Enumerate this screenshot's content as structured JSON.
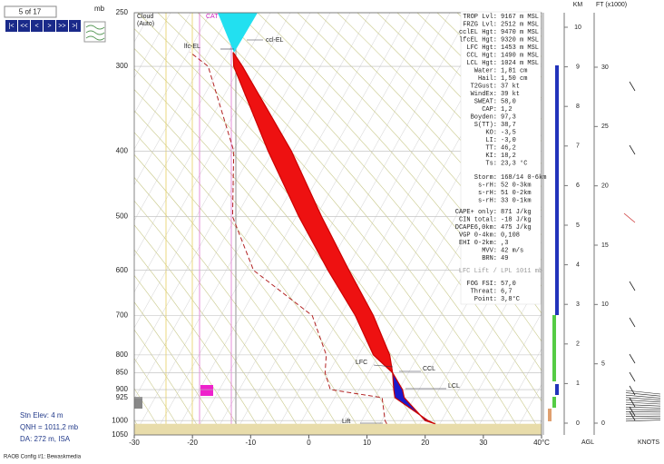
{
  "navigator": {
    "counter": "5 of 17",
    "buttons": [
      "|<",
      "<<",
      "<",
      ">",
      ">>",
      ">|"
    ]
  },
  "station": {
    "elevation": "Stn Elev: 4 m",
    "qnh": "QNH = 1011,2 mb",
    "da": "DA: 272 m, ISA"
  },
  "footer": "RAOB Config #1: Bewaskmedia",
  "chart_data": {
    "type": "skew-t",
    "y_label": "mb",
    "ylog": true,
    "grid": true,
    "levels": [
      1011,
      1000,
      925,
      900,
      850,
      800,
      700,
      600,
      500,
      400,
      300,
      286
    ],
    "ylim": [
      1050,
      250
    ],
    "yticks": [
      250,
      300,
      400,
      500,
      600,
      700,
      800,
      850,
      900,
      925,
      1000,
      1050
    ],
    "xlim": [
      -30,
      40
    ],
    "xticks": [
      -30,
      -20,
      -10,
      0,
      10,
      20,
      30,
      {
        "value": 40,
        "label": "40°C"
      }
    ],
    "series": [
      {
        "color": "#cc0000",
        "values": [
          21.7,
          20.0,
          16.4,
          16.1,
          14.4,
          11.1,
          8.0,
          3.3,
          -1.7,
          -7.0,
          -12.9,
          -13.0
        ]
      },
      {
        "color": "#cc0000",
        "values": [
          21.7,
          20.5,
          14.8,
          14.6,
          14.4,
          13.9,
          11.1,
          6.9,
          2.2,
          -3.0,
          -11.4,
          -13.0
        ]
      },
      {
        "color": "#b22222",
        "dashed": true,
        "values": [
          13.4,
          13.1,
          12.6,
          3.7,
          2.8,
          3.0,
          0.6,
          -9.5,
          -13.1,
          -12.9,
          -17.3,
          -20.4
        ]
      }
    ],
    "cape_color": "#ee1111",
    "cin_color": "#1a1acc",
    "annotations": [
      "Cloud",
      "(Auto)",
      "CAT",
      "lfc-EL",
      "ccl-EL",
      "LFC",
      "CCL",
      "LCL",
      "Lift"
    ],
    "km_axis": {
      "label": "KM",
      "lim": [
        0,
        10
      ],
      "ticks": [
        0,
        1,
        2,
        3,
        4,
        5,
        6,
        7,
        8,
        9,
        10
      ],
      "footer": "AGL"
    },
    "ft_axis": {
      "label": "FT (x1000)",
      "lim": [
        0,
        30
      ],
      "ticks": [
        0,
        5,
        10,
        15,
        20,
        25,
        30
      ],
      "footer": "KNOTS"
    },
    "stats": [
      [
        {
          "label": "TROP Lvl:",
          "value": "9167 m MSL"
        },
        {
          "label": "FRZG Lvl:",
          "value": "2512 m MSL"
        },
        {
          "label": "cclEL Hgt:",
          "value": "9470 m MSL"
        },
        {
          "label": "lfcEL Hgt:",
          "value": "9320 m MSL"
        },
        {
          "label": "LFC Hgt:",
          "value": "1453 m MSL"
        },
        {
          "label": "CCL Hgt:",
          "value": "1490 m MSL"
        },
        {
          "label": "LCL Hgt:",
          "value": "1024 m MSL"
        },
        {
          "label": "Water:",
          "value": "1,81 cm"
        },
        {
          "label": "Hail:",
          "value": "1,50 cm"
        },
        {
          "label": "T2Gust:",
          "value": "37 kt"
        },
        {
          "label": "WindEx:",
          "value": "39 kt"
        },
        {
          "label": "SWEAT:",
          "value": "58,0"
        },
        {
          "label": "CAP:",
          "value": "1,2"
        },
        {
          "label": "Boyden:",
          "value": "97,3"
        },
        {
          "label": "S(TT):",
          "value": "38,7"
        },
        {
          "label": "KO:",
          "value": "-3,5"
        },
        {
          "label": "LI:",
          "value": "-3,0"
        },
        {
          "label": "TT:",
          "value": "46,2"
        },
        {
          "label": "KI:",
          "value": "18,2"
        },
        {
          "label": "Ts:",
          "value": "23,3 °C"
        }
      ],
      [
        {
          "label": "Storm:",
          "value": "168/14 0-6km"
        },
        {
          "label": "s-rH:",
          "value": "52 0-3km"
        },
        {
          "label": "s-rH:",
          "value": "51 0-2km"
        },
        {
          "label": "s-rH:",
          "value": "33 0-1km"
        }
      ],
      [
        {
          "label": "CAPE+ only:",
          "value": "871 J/kg"
        },
        {
          "label": "CIN total:",
          "value": "-18 J/kg"
        },
        {
          "label": "DCAPE6,0km:",
          "value": "475 J/kg"
        },
        {
          "label": "VGP 0-4km:",
          "value": "0,108"
        },
        {
          "label": "EHI 0-2km:",
          "value": ",3"
        },
        {
          "label": "MVV:",
          "value": "42 m/s"
        },
        {
          "label": "BRN:",
          "value": "49"
        }
      ],
      [
        {
          "label": "FOG FSI:",
          "value": "57,0"
        },
        {
          "label": "Threat:",
          "value": "6,7"
        },
        {
          "label": "Point:",
          "value": "3,8°C"
        }
      ]
    ],
    "lift_note": "LFC Lift / LPL 1011 mb"
  }
}
